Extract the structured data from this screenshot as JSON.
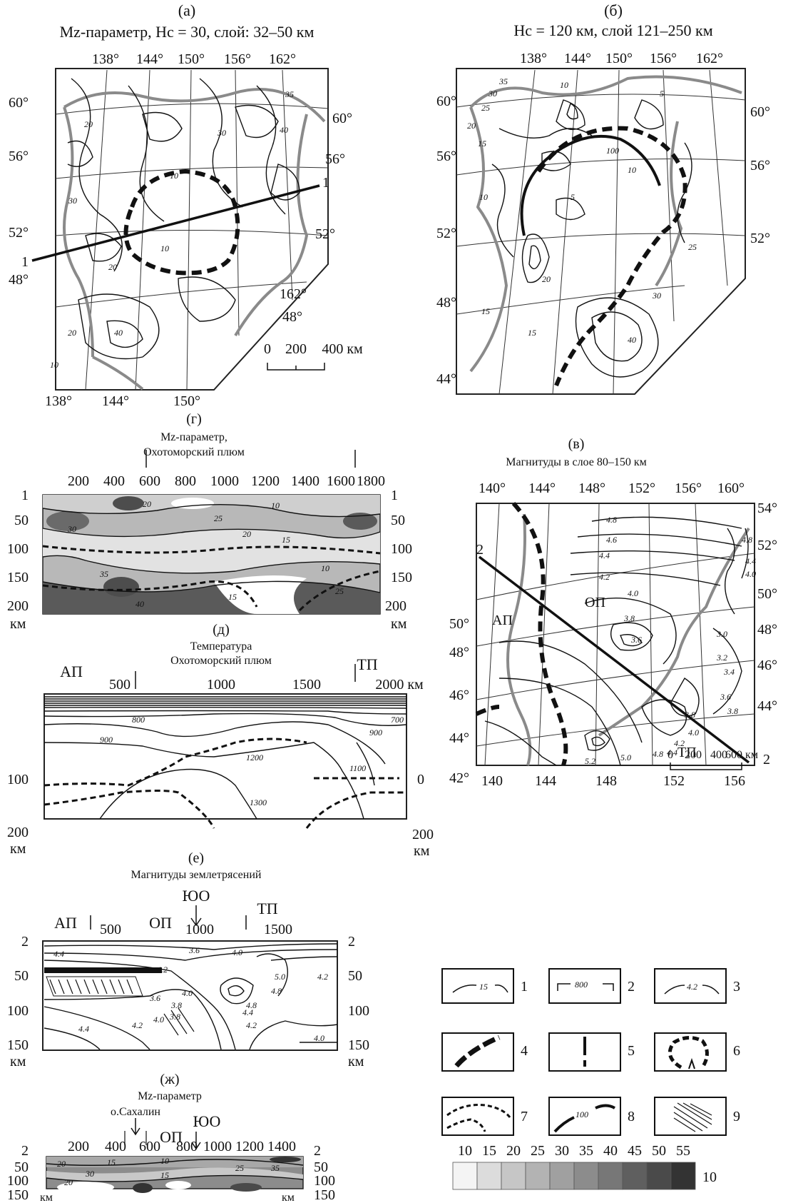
{
  "panel_a": {
    "letter": "(а)",
    "title": "Mz-параметр, Hc = 30, слой: 32–50 км",
    "top_lon": [
      "138°",
      "144°",
      "150°",
      "156°",
      "162°"
    ],
    "bottom_lon": [
      "138°",
      "144°",
      "150°"
    ],
    "left_lat": [
      "60°",
      "56°",
      "52°",
      "48°"
    ],
    "right_lat": [
      "60°",
      "56°",
      "52°",
      "48°"
    ],
    "right_lon": "162°",
    "profile_label": "1",
    "scale": {
      "zero": "0",
      "mid": "200",
      "end": "400 км"
    },
    "contour_labels": [
      "20",
      "30",
      "10",
      "40",
      "35",
      "20",
      "10",
      "30",
      "20",
      "40",
      "10"
    ]
  },
  "panel_b": {
    "letter": "(б)",
    "title": "Hc = 120 км, слой 121–250 км",
    "top_lon": [
      "138°",
      "144°",
      "150°",
      "156°",
      "162°"
    ],
    "left_lat": [
      "60°",
      "56°",
      "52°",
      "48°",
      "44°"
    ],
    "right_lat": [
      "60°",
      "56°",
      "52°"
    ],
    "contour_labels": [
      "35",
      "30",
      "25",
      "20",
      "15",
      "10",
      "100",
      "10",
      "5",
      "25",
      "20",
      "30",
      "40",
      "15",
      "10",
      "15",
      "5"
    ]
  },
  "panel_g": {
    "letter": "(г)",
    "title_line1": "Mz-параметр,",
    "title_line2": "Охотоморский плюм",
    "x_ticks": [
      "200",
      "400",
      "600",
      "800",
      "1000",
      "1200",
      "1400",
      "1600",
      "1800"
    ],
    "y_ticks": [
      "1",
      "50",
      "100",
      "150",
      "200"
    ],
    "y_unit": "км",
    "contour_labels": [
      "20",
      "30",
      "25",
      "20",
      "15",
      "10",
      "40",
      "35",
      "10",
      "15",
      "25"
    ]
  },
  "panel_v": {
    "letter": "(в)",
    "title": "Магнитуды в слое 80–150 км",
    "top_lon": [
      "140°",
      "144°",
      "148°",
      "152°",
      "156°",
      "160°"
    ],
    "bottom_lon": [
      "140",
      "144",
      "148",
      "152",
      "156"
    ],
    "left_lat": [
      "50°",
      "48°",
      "46°",
      "44°",
      "42°"
    ],
    "right_lat": [
      "54°",
      "52°",
      "50°",
      "48°",
      "46°",
      "44°"
    ],
    "profile_label": "2",
    "region_labels": [
      "АП",
      "ОП",
      "ТП"
    ],
    "scale": {
      "zero": "0",
      "a": "200",
      "b": "400",
      "end": "600 км"
    },
    "contour_labels": [
      "4.8",
      "4.6",
      "4.4",
      "4.2",
      "4.0",
      "3.8",
      "3.6",
      "3.0",
      "3.2",
      "3.4",
      "3.6",
      "3.8",
      "4.0",
      "4.2",
      "4.4",
      "5.2",
      "5.0",
      "4.8",
      "4.8",
      "4.4",
      "4.0",
      "3.8"
    ]
  },
  "panel_d": {
    "letter": "(д)",
    "title_line1": "Температура",
    "title_line2": "Охотоморский плюм",
    "left_region": "АП",
    "right_region": "ТП",
    "x_ticks": [
      "500",
      "1000",
      "1500",
      "2000 км"
    ],
    "y_left": [
      "100",
      "200"
    ],
    "y_right": [
      "0",
      "200"
    ],
    "y_unit": "км",
    "contour_labels": [
      "800",
      "900",
      "1200",
      "1300",
      "1100",
      "900",
      "700"
    ]
  },
  "panel_e": {
    "letter": "(е)",
    "title": "Магнитуды землетрясений",
    "marker": "ЮО",
    "regions": [
      "АП",
      "ОП",
      "ТП"
    ],
    "x_ticks": [
      "500",
      "1000",
      "1500"
    ],
    "y_ticks": [
      "2",
      "50",
      "100",
      "150"
    ],
    "y_unit": "км",
    "contour_labels": [
      "4.4",
      "3.6",
      "4.0",
      "4.2",
      "3.6",
      "3.8",
      "4.0",
      "4.8",
      "4.8",
      "5.0",
      "4.4",
      "4.2",
      "4.2",
      "4.0",
      "4.4",
      "4.2",
      "4.0",
      "3.8"
    ]
  },
  "panel_zh": {
    "letter": "(ж)",
    "title": "Mz-параметр",
    "island": "о.Сахалин",
    "marker": "ЮО",
    "region": "ОП",
    "x_ticks": [
      "200",
      "400",
      "600",
      "800",
      "1000",
      "1200",
      "1400"
    ],
    "y_ticks": [
      "2",
      "50",
      "100",
      "150"
    ],
    "y_unit": "км",
    "contour_labels": [
      "20",
      "15",
      "10",
      "25",
      "30",
      "35",
      "20",
      "15"
    ]
  },
  "legend": {
    "items": [
      {
        "num": "1",
        "sample": "15"
      },
      {
        "num": "2",
        "sample": "800"
      },
      {
        "num": "3",
        "sample": "4.2"
      },
      {
        "num": "4",
        "sample": ""
      },
      {
        "num": "5",
        "sample": ""
      },
      {
        "num": "6",
        "sample": ""
      },
      {
        "num": "7",
        "sample": ""
      },
      {
        "num": "8",
        "sample": "100"
      },
      {
        "num": "9",
        "sample": ""
      }
    ],
    "scale_values": [
      "10",
      "15",
      "20",
      "25",
      "30",
      "35",
      "40",
      "45",
      "50",
      "55"
    ],
    "scale_num": "10",
    "scale_colors": [
      "#f4f4f4",
      "#dcdcdc",
      "#c6c6c6",
      "#b3b3b3",
      "#a0a0a0",
      "#8c8c8c",
      "#777777",
      "#5f5f5f",
      "#4a4a4a",
      "#333333"
    ]
  }
}
